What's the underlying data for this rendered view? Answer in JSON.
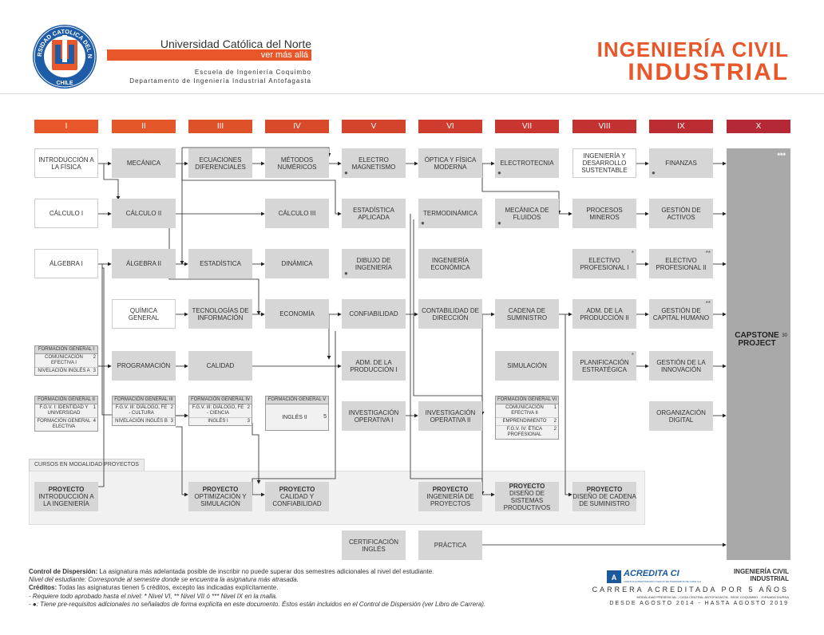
{
  "header": {
    "logo_ring": "UNIVERSIDAD CATOLICA DEL NORTE",
    "logo_bottom": "CHILE",
    "university": "Universidad Católica del Norte",
    "tagline": "ver más allá",
    "line1": "Escuela de Ingeniería Coquimbo",
    "line2": "Departamento de Ingeniería Industrial Antofagasta",
    "title_line1": "INGENIERÍA CIVIL",
    "title_line2": "INDUSTRIAL"
  },
  "colors": {
    "accent": "#e8572a",
    "sem_I": "#e8572a",
    "sem_II": "#e35728",
    "sem_III": "#df5229",
    "sem_IV": "#d84a2a",
    "sem_V": "#d4432b",
    "sem_VI": "#cf3c2d",
    "sem_VII": "#c9362f",
    "sem_VIII": "#c33131",
    "sem_IX": "#bc2c33",
    "sem_X": "#b52835",
    "box": "#d6d6d6",
    "capstone": "#a9a9a9"
  },
  "semesters": [
    "I",
    "II",
    "III",
    "IV",
    "V",
    "VI",
    "VII",
    "VIII",
    "IX",
    "X"
  ],
  "courses": {
    "intro_fisica": "INTRODUCCIÓN A LA FÍSICA",
    "calculo1": "CÁLCULO I",
    "algebra1": "ÁLGEBRA I",
    "mecanica": "MECÁNICA",
    "calculo2": "CÁLCULO II",
    "algebra2": "ÁLGEBRA II",
    "quimica": "QUÍMICA GENERAL",
    "programacion": "PROGRAMACIÓN",
    "ecuaciones": "ECUACIONES DIFERENCIALES",
    "estadistica": "ESTADÍSTICA",
    "tecnologias": "TECNOLOGÍAS DE INFORMACIÓN",
    "calidad": "CALIDAD",
    "metodos": "MÉTODOS NUMÉRICOS",
    "calculo3": "CÁLCULO III",
    "dinamica": "DINÁMICA",
    "economia": "ECONOMÍA",
    "electromag": "ELECTRO MAGNETISMO",
    "est_aplicada": "ESTADÍSTICA APLICADA",
    "dibujo": "DIBUJO DE INGENIERÍA",
    "confiabilidad": "CONFIABILIDAD",
    "adm_prod1": "ADM. DE LA PRODUCCIÓN I",
    "inv_op1": "INVESTIGACIÓN OPERATIVA I",
    "optica": "ÓPTICA Y FÍSICA MODERNA",
    "termo": "TERMODINÁMICA",
    "ing_economica": "INGENIERÍA ECONÓMICA",
    "contabilidad": "CONTABILIDAD DE DIRECCIÓN",
    "inv_op2": "INVESTIGACIÓN OPERATIVA II",
    "electrotecnia": "ELECTROTECNIA",
    "mec_fluidos": "MECÁNICA DE FLUIDOS",
    "cadena": "CADENA DE SUMINISTRO",
    "simulacion": "SIMULACIÓN",
    "ing_sustentable": "INGENIERÍA Y DESARROLLO SUSTENTABLE",
    "procesos": "PROCESOS MINEROS",
    "electivo1": "ELECTIVO PROFESIONAL I",
    "adm_prod2": "ADM. DE LA PRODUCCIÓN II",
    "planificacion": "PLANIFICACIÓN ESTRATÉGICA",
    "finanzas": "FINANZAS",
    "gestion_activos": "GESTIÓN DE ACTIVOS",
    "electivo2": "ELECTIVO PROFESIONAL II",
    "capital_humano": "GESTIÓN DE CAPITAL HUMANO",
    "innovacion": "GESTIÓN DE LA INNOVACIÓN",
    "org_digital": "ORGANIZACIÓN DIGITAL",
    "certificacion": "CERTIFICACIÓN INGLÉS",
    "practica": "PRÁCTICA",
    "capstone": "CAPSTONE PROJECT",
    "capstone_credits": "30",
    "capstone_stars": "***",
    "mark_dot": "●",
    "mark_star": "*",
    "mark_star2": "**"
  },
  "groups": {
    "fg1": {
      "header": "FORMACIÓN GENERAL I",
      "rows": [
        {
          "label": "COMUNICACIÓN EFECTIVA I",
          "credits": "2"
        },
        {
          "label": "NIVELACIÓN INGLÉS A",
          "credits": "3"
        }
      ]
    },
    "fg2": {
      "header": "FORMACIÓN GENERAL II",
      "rows": [
        {
          "label": "F.G.V. I: IDENTIDAD Y UNIVERSIDAD",
          "credits": "1"
        },
        {
          "label": "FORMACIÓN GENERAL ELECTIVA",
          "credits": "4"
        }
      ]
    },
    "fg3": {
      "header": "FORMACIÓN GENERAL III",
      "rows": [
        {
          "label": "F.G.V. III: DIÁLOGO, FE - CULTURA",
          "credits": "2"
        },
        {
          "label": "NIVELACIÓN INGLÉS B",
          "credits": "3"
        }
      ]
    },
    "fg4": {
      "header": "FORMACIÓN GENERAL IV",
      "rows": [
        {
          "label": "F.G.V. III: DIÁLOGO, FE - CIENCIA",
          "credits": "2"
        },
        {
          "label": "INGLÉS I",
          "credits": "3"
        }
      ]
    },
    "fg5": {
      "header": "FORMACIÓN GENERAL V",
      "rows": [
        {
          "label": "INGLÉS II",
          "credits": "5"
        }
      ]
    },
    "fg6": {
      "header": "FORMACIÓN GENERAL VI",
      "rows": [
        {
          "label": "COMUNICACIÓN EFECTIVA II",
          "credits": "1"
        },
        {
          "label": "EMPRENDIMIENTO",
          "credits": "2"
        },
        {
          "label": "F.G.V. IV: ÉTICA PROFESIONAL",
          "credits": "2"
        }
      ]
    }
  },
  "projects": {
    "section_label": "CURSOS EN MODALIDAD PROYECTOS",
    "title": "PROYECTO",
    "p1": "INTRODUCCIÓN A LA INGENIERÍA",
    "p3": "OPTIMIZACIÓN Y SIMULACIÓN",
    "p4": "CALIDAD Y CONFIABILIDAD",
    "p6": "INGENIERÍA DE PROYECTOS",
    "p7": "DISEÑO DE SISTEMAS PRODUCTIVOS",
    "p8": "DISEÑO DE CADENA DE SUMINISTRO"
  },
  "footer": {
    "control_label": "Control de Dispersión:",
    "control_text": " La asignatura más adelantada posible de inscribir no puede superar dos semestres adicionales al nivel del estudiante.",
    "nivel_text": "Nivel del estudiante: Corresponde al semestre donde se encuentra la asignatura más atrasada.",
    "creditos_label": "Créditos:",
    "creditos_text": " Todas las asignaturas tienen 5 créditos, excepto las indicadas explícitamente.",
    "req_text": "- Requiere todo aprobado hasta el nivel: * Nivel VI, ** Nivel VII ó *** Nivel IX en la malla.",
    "dot_text": "- ●: Tiene pre-requisitos adicionales no señalados de forma explícita en este documento. Éstos están incluidos en el  Control de Dispersión (ver Libro de Carrera).",
    "acredita": "ACREDITA CI",
    "acredita_sub": "AGENCIA ACREDITADORA COLEGIO DE INGENIEROS DE CHILE S.A.",
    "right_title1": "INGENIERÍA CIVIL",
    "right_title2": "INDUSTRIAL",
    "right_acred": "CARRERA ACREDITADA POR 5 AÑOS",
    "right_modalidad": "MODALIDAD PRESENCIAL - CASA CENTRAL ANTOFAGASTA - SEDE COQUIMBO - JORNADA DIURNA",
    "right_dates": "DESDE AGOSTO 2014 - HASTA AGOSTO 2019"
  }
}
